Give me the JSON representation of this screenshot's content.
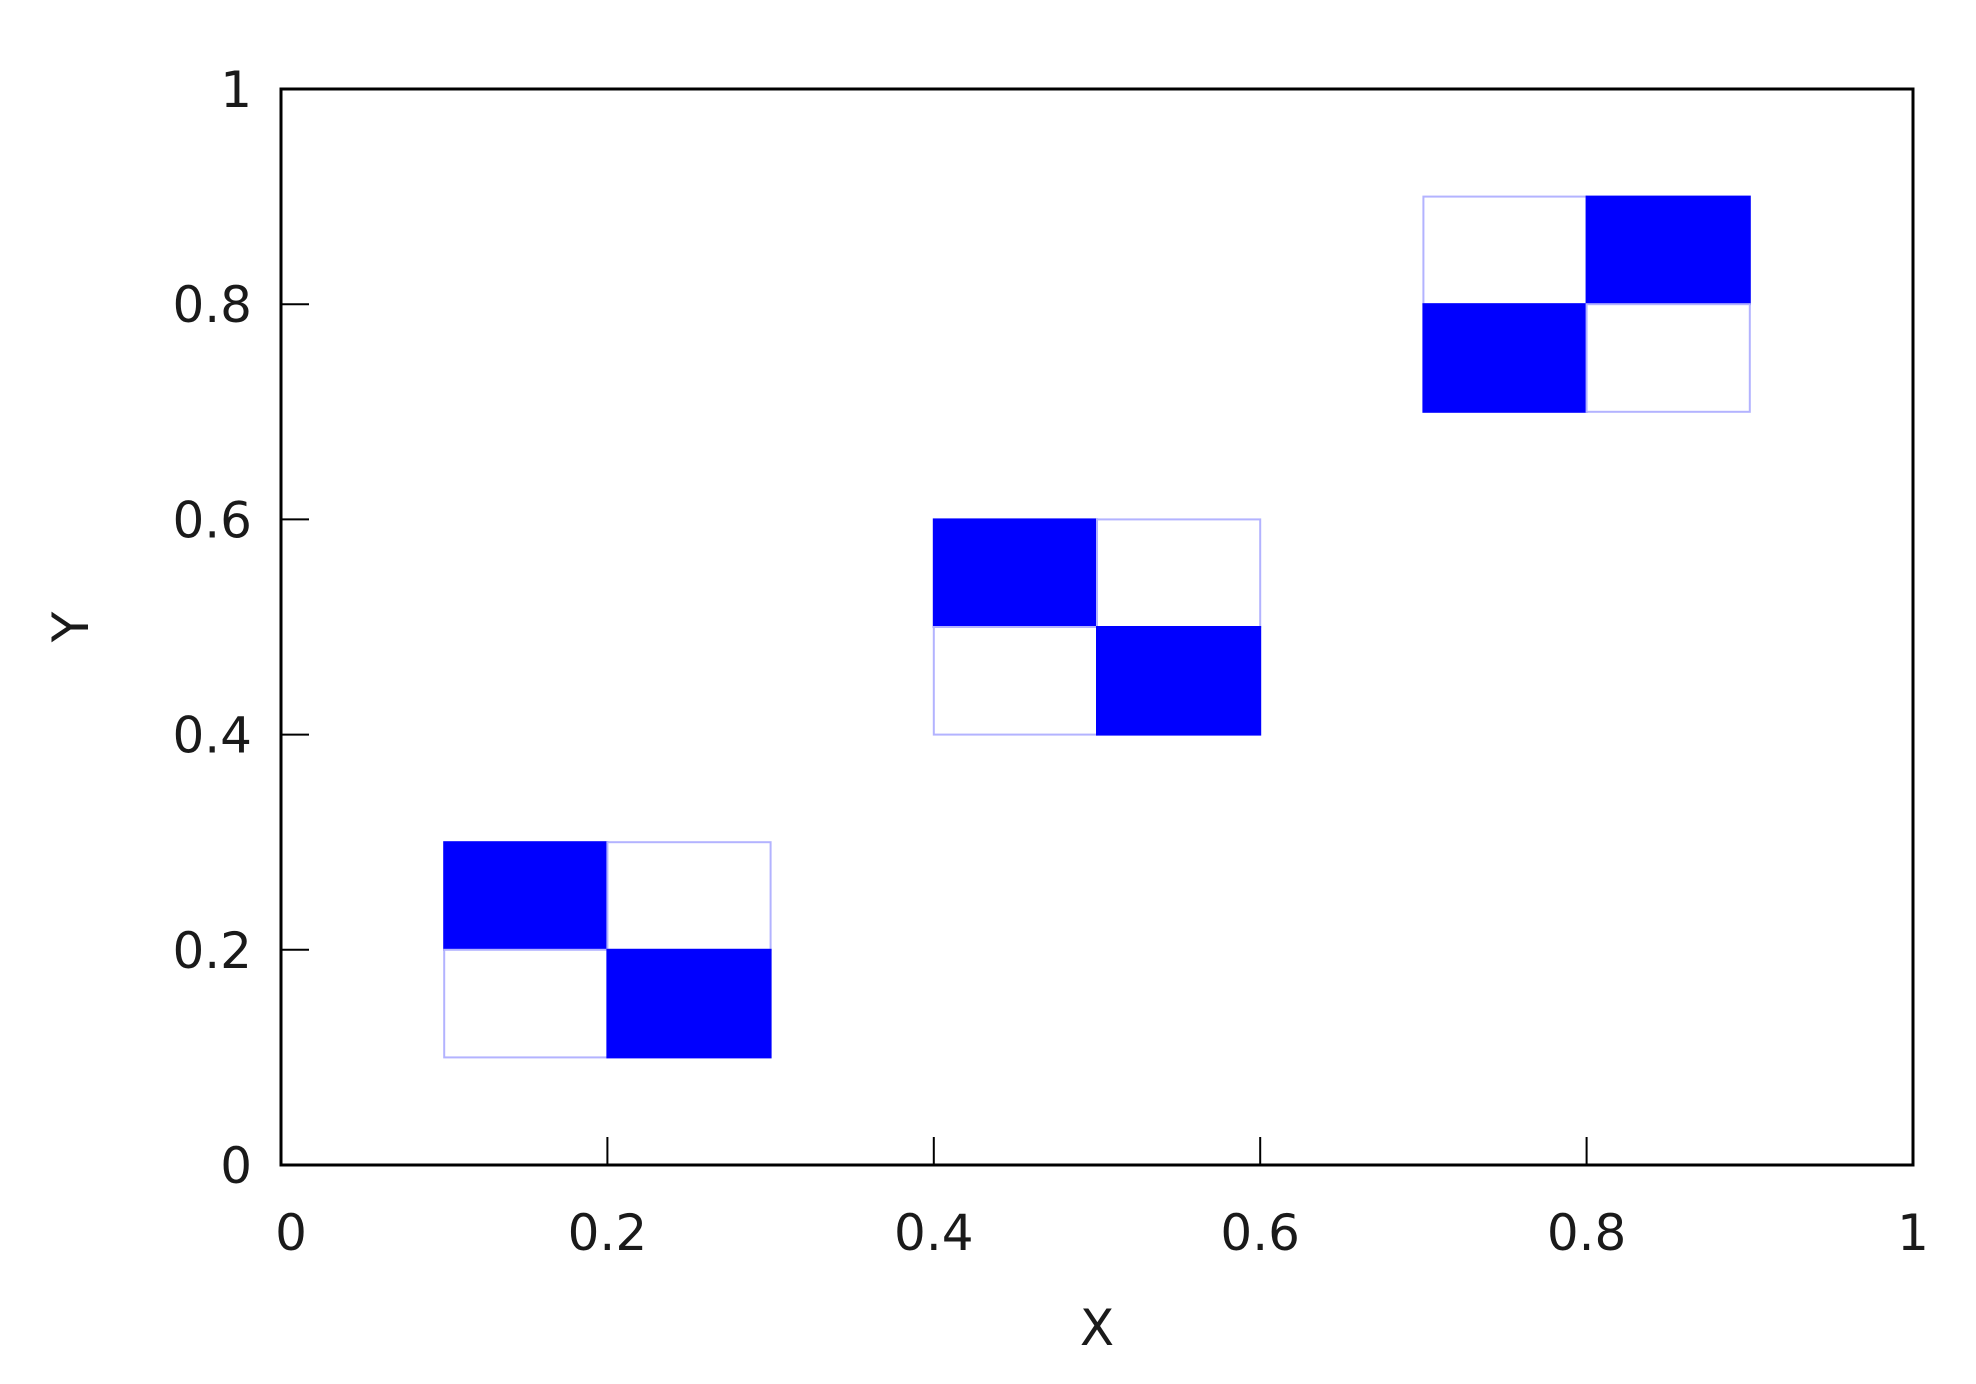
{
  "chart_data": {
    "type": "heatmap",
    "title": "",
    "xlabel": "X",
    "ylabel": "Y",
    "xlim": [
      0,
      1
    ],
    "ylim": [
      0,
      1
    ],
    "x_ticks": [
      "0",
      "0.2",
      "0.4",
      "0.6",
      "0.8",
      "1"
    ],
    "y_ticks": [
      "0",
      "0.2",
      "0.4",
      "0.6",
      "0.8",
      "1"
    ],
    "grid": false,
    "legend": "none",
    "fill_color": "#0000ff",
    "outline_color": "#b3b3ff",
    "frame_color": "#000000",
    "cells": [
      {
        "x0": 0.1,
        "x1": 0.2,
        "y0": 0.2,
        "y1": 0.3,
        "filled": true
      },
      {
        "x0": 0.2,
        "x1": 0.3,
        "y0": 0.2,
        "y1": 0.3,
        "filled": false
      },
      {
        "x0": 0.1,
        "x1": 0.2,
        "y0": 0.1,
        "y1": 0.2,
        "filled": false
      },
      {
        "x0": 0.2,
        "x1": 0.3,
        "y0": 0.1,
        "y1": 0.2,
        "filled": true
      },
      {
        "x0": 0.4,
        "x1": 0.5,
        "y0": 0.5,
        "y1": 0.6,
        "filled": true
      },
      {
        "x0": 0.5,
        "x1": 0.6,
        "y0": 0.5,
        "y1": 0.6,
        "filled": false
      },
      {
        "x0": 0.4,
        "x1": 0.5,
        "y0": 0.4,
        "y1": 0.5,
        "filled": false
      },
      {
        "x0": 0.5,
        "x1": 0.6,
        "y0": 0.4,
        "y1": 0.5,
        "filled": true
      },
      {
        "x0": 0.7,
        "x1": 0.8,
        "y0": 0.8,
        "y1": 0.9,
        "filled": false
      },
      {
        "x0": 0.8,
        "x1": 0.9,
        "y0": 0.8,
        "y1": 0.9,
        "filled": true
      },
      {
        "x0": 0.7,
        "x1": 0.8,
        "y0": 0.7,
        "y1": 0.8,
        "filled": true
      },
      {
        "x0": 0.8,
        "x1": 0.9,
        "y0": 0.7,
        "y1": 0.8,
        "filled": false
      }
    ]
  }
}
